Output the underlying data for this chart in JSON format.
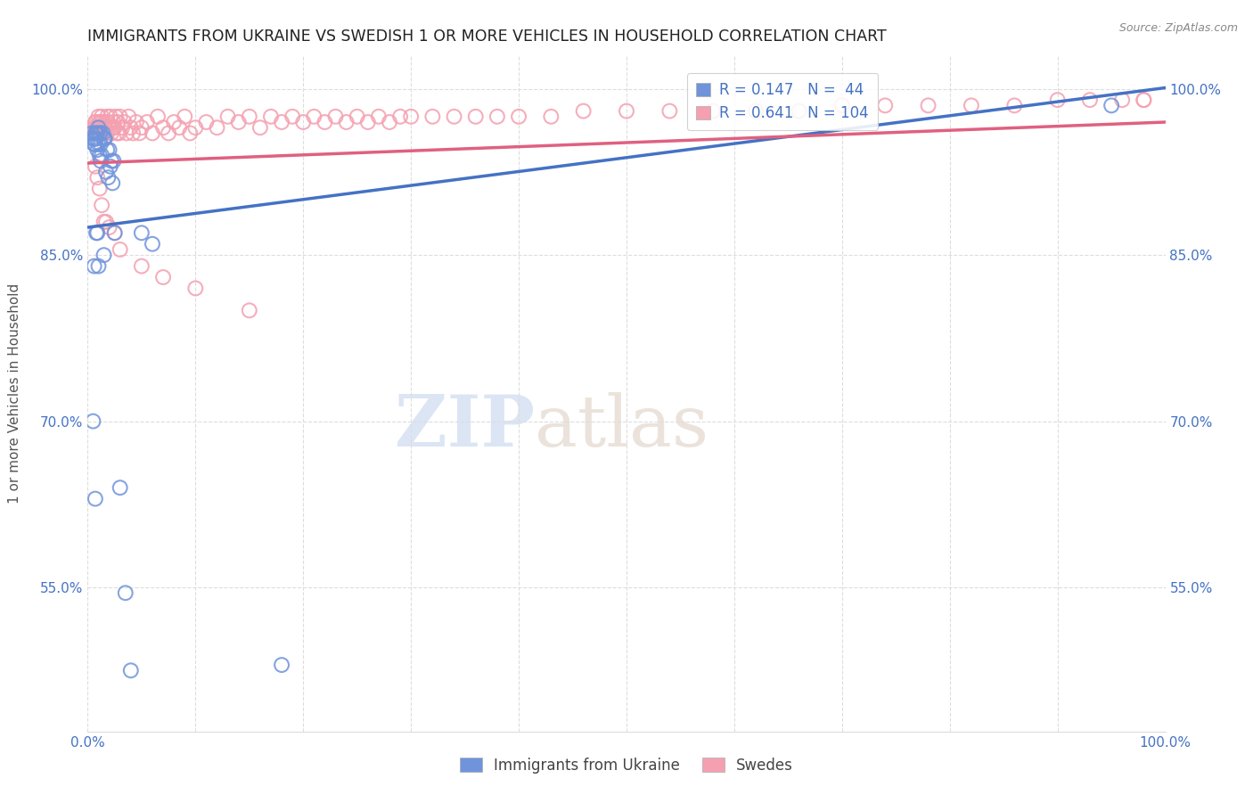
{
  "title": "IMMIGRANTS FROM UKRAINE VS SWEDISH 1 OR MORE VEHICLES IN HOUSEHOLD CORRELATION CHART",
  "source": "Source: ZipAtlas.com",
  "ylabel": "1 or more Vehicles in Household",
  "yticks": [
    0.55,
    0.7,
    0.85,
    1.0
  ],
  "ytick_labels": [
    "55.0%",
    "70.0%",
    "85.0%",
    "100.0%"
  ],
  "xrange": [
    0.0,
    1.0
  ],
  "yrange": [
    0.42,
    1.03
  ],
  "legend_labels": [
    "Immigrants from Ukraine",
    "Swedes"
  ],
  "ukraine_color": "#7094db",
  "swedes_color": "#f4a0b0",
  "ukraine_line_color": "#4472c4",
  "swedes_line_color": "#e06080",
  "R_ukraine": 0.147,
  "N_ukraine": 44,
  "R_swedes": 0.641,
  "N_swedes": 104,
  "ukraine_x": [
    0.004,
    0.005,
    0.005,
    0.006,
    0.006,
    0.006,
    0.007,
    0.007,
    0.007,
    0.008,
    0.008,
    0.008,
    0.009,
    0.009,
    0.009,
    0.01,
    0.01,
    0.01,
    0.011,
    0.011,
    0.012,
    0.012,
    0.012,
    0.013,
    0.014,
    0.015,
    0.015,
    0.016,
    0.017,
    0.018,
    0.019,
    0.02,
    0.021,
    0.022,
    0.023,
    0.024,
    0.025,
    0.03,
    0.035,
    0.04,
    0.05,
    0.06,
    0.18,
    0.95
  ],
  "ukraine_y": [
    0.96,
    0.955,
    0.7,
    0.955,
    0.95,
    0.84,
    0.96,
    0.95,
    0.63,
    0.96,
    0.955,
    0.87,
    0.96,
    0.945,
    0.87,
    0.965,
    0.95,
    0.84,
    0.96,
    0.94,
    0.96,
    0.95,
    0.935,
    0.94,
    0.96,
    0.955,
    0.85,
    0.955,
    0.925,
    0.945,
    0.92,
    0.945,
    0.93,
    0.935,
    0.915,
    0.935,
    0.87,
    0.64,
    0.545,
    0.475,
    0.87,
    0.86,
    0.48,
    0.985
  ],
  "swedes_x": [
    0.005,
    0.006,
    0.007,
    0.008,
    0.008,
    0.009,
    0.01,
    0.01,
    0.011,
    0.012,
    0.012,
    0.013,
    0.014,
    0.015,
    0.016,
    0.017,
    0.018,
    0.018,
    0.019,
    0.02,
    0.021,
    0.022,
    0.023,
    0.024,
    0.025,
    0.026,
    0.027,
    0.028,
    0.029,
    0.03,
    0.032,
    0.034,
    0.036,
    0.038,
    0.04,
    0.042,
    0.045,
    0.048,
    0.05,
    0.055,
    0.06,
    0.065,
    0.07,
    0.075,
    0.08,
    0.085,
    0.09,
    0.095,
    0.1,
    0.11,
    0.12,
    0.13,
    0.14,
    0.15,
    0.16,
    0.17,
    0.18,
    0.19,
    0.2,
    0.21,
    0.22,
    0.23,
    0.24,
    0.25,
    0.26,
    0.27,
    0.28,
    0.29,
    0.3,
    0.32,
    0.34,
    0.36,
    0.38,
    0.4,
    0.43,
    0.46,
    0.5,
    0.54,
    0.58,
    0.62,
    0.66,
    0.7,
    0.74,
    0.78,
    0.82,
    0.86,
    0.9,
    0.93,
    0.96,
    0.98,
    0.007,
    0.009,
    0.011,
    0.013,
    0.015,
    0.017,
    0.02,
    0.025,
    0.03,
    0.05,
    0.07,
    0.1,
    0.15,
    0.98
  ],
  "swedes_y": [
    0.96,
    0.965,
    0.97,
    0.965,
    0.97,
    0.965,
    0.975,
    0.96,
    0.97,
    0.97,
    0.965,
    0.975,
    0.97,
    0.96,
    0.97,
    0.965,
    0.975,
    0.96,
    0.97,
    0.965,
    0.975,
    0.96,
    0.965,
    0.97,
    0.965,
    0.975,
    0.96,
    0.97,
    0.96,
    0.975,
    0.965,
    0.97,
    0.96,
    0.975,
    0.965,
    0.96,
    0.97,
    0.96,
    0.965,
    0.97,
    0.96,
    0.975,
    0.965,
    0.96,
    0.97,
    0.965,
    0.975,
    0.96,
    0.965,
    0.97,
    0.965,
    0.975,
    0.97,
    0.975,
    0.965,
    0.975,
    0.97,
    0.975,
    0.97,
    0.975,
    0.97,
    0.975,
    0.97,
    0.975,
    0.97,
    0.975,
    0.97,
    0.975,
    0.975,
    0.975,
    0.975,
    0.975,
    0.975,
    0.975,
    0.975,
    0.98,
    0.98,
    0.98,
    0.98,
    0.98,
    0.98,
    0.985,
    0.985,
    0.985,
    0.985,
    0.985,
    0.99,
    0.99,
    0.99,
    0.99,
    0.93,
    0.92,
    0.91,
    0.895,
    0.88,
    0.88,
    0.875,
    0.87,
    0.855,
    0.84,
    0.83,
    0.82,
    0.8,
    0.99
  ],
  "watermark_zip": "ZIP",
  "watermark_atlas": "atlas",
  "background_color": "#ffffff",
  "grid_color": "#dddddd",
  "tick_color": "#4472c4",
  "title_fontsize": 12.5,
  "axis_fontsize": 11,
  "legend_fontsize": 12
}
